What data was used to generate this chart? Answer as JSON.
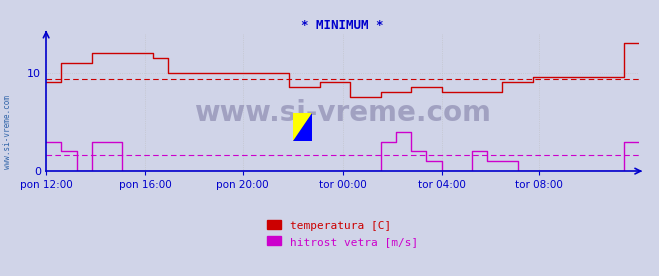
{
  "title": "* MINIMUM *",
  "title_color": "#0000cc",
  "bg_color": "#d0d4e8",
  "plot_bg_color": "#d0d4e8",
  "axis_color": "#0000cc",
  "grid_color": "#bbbbbb",
  "watermark_text": "www.si-vreme.com",
  "watermark_color": "#9999bb",
  "side_label": "www.si-vreme.com",
  "side_label_color": "#3366aa",
  "xlabels": [
    "pon 12:00",
    "pon 16:00",
    "pon 20:00",
    "tor 00:00",
    "tor 04:00",
    "tor 08:00"
  ],
  "xtick_fracs": [
    0.0,
    0.1667,
    0.3333,
    0.5,
    0.6667,
    0.8333
  ],
  "total_points": 576,
  "ylim": [
    0,
    14
  ],
  "yticks": [
    0,
    10
  ],
  "temp_color": "#cc0000",
  "wind_color": "#cc00cc",
  "temp_avg": 9.3,
  "wind_avg": 1.6,
  "legend_labels": [
    "temperatura [C]",
    "hitrost vetra [m/s]"
  ],
  "legend_colors": [
    "#cc0000",
    "#cc00cc"
  ],
  "temp_data": [
    9,
    9,
    9,
    9,
    9,
    9,
    9,
    9,
    9,
    9,
    9,
    9,
    11,
    11,
    11,
    11,
    11,
    11,
    11,
    11,
    11,
    11,
    11,
    11,
    11,
    11,
    11,
    11,
    11,
    11,
    11,
    11,
    11,
    11,
    11,
    11,
    12,
    12,
    12,
    12,
    12,
    12,
    12,
    12,
    12,
    12,
    12,
    12,
    12,
    12,
    12,
    12,
    12,
    12,
    12,
    12,
    12,
    12,
    12,
    12,
    12,
    12,
    12,
    12,
    12,
    12,
    12,
    12,
    12,
    12,
    12,
    12,
    12,
    12,
    12,
    12,
    12,
    12,
    12,
    12,
    12,
    12,
    12,
    12,
    11.5,
    11.5,
    11.5,
    11.5,
    11.5,
    11.5,
    11.5,
    11.5,
    11.5,
    11.5,
    11.5,
    11.5,
    10,
    10,
    10,
    10,
    10,
    10,
    10,
    10,
    10,
    10,
    10,
    10,
    10,
    10,
    10,
    10,
    10,
    10,
    10,
    10,
    10,
    10,
    10,
    10,
    10,
    10,
    10,
    10,
    10,
    10,
    10,
    10,
    10,
    10,
    10,
    10,
    10,
    10,
    10,
    10,
    10,
    10,
    10,
    10,
    10,
    10,
    10,
    10,
    10,
    10,
    10,
    10,
    10,
    10,
    10,
    10,
    10,
    10,
    10,
    10,
    10,
    10,
    10,
    10,
    10,
    10,
    10,
    10,
    10,
    10,
    10,
    10,
    10,
    10,
    10,
    10,
    10,
    10,
    10,
    10,
    10,
    10,
    10,
    10,
    10,
    10,
    10,
    10,
    10,
    10,
    10,
    10,
    10,
    10,
    10,
    10,
    8.5,
    8.5,
    8.5,
    8.5,
    8.5,
    8.5,
    8.5,
    8.5,
    8.5,
    8.5,
    8.5,
    8.5,
    8.5,
    8.5,
    8.5,
    8.5,
    8.5,
    8.5,
    8.5,
    8.5,
    8.5,
    8.5,
    8.5,
    8.5,
    9,
    9,
    9,
    9,
    9,
    9,
    9,
    9,
    9,
    9,
    9,
    9,
    9,
    9,
    9,
    9,
    9,
    9,
    9,
    9,
    9,
    9,
    9,
    9,
    7.5,
    7.5,
    7.5,
    7.5,
    7.5,
    7.5,
    7.5,
    7.5,
    7.5,
    7.5,
    7.5,
    7.5,
    7.5,
    7.5,
    7.5,
    7.5,
    7.5,
    7.5,
    7.5,
    7.5,
    7.5,
    7.5,
    7.5,
    7.5,
    8,
    8,
    8,
    8,
    8,
    8,
    8,
    8,
    8,
    8,
    8,
    8,
    8,
    8,
    8,
    8,
    8,
    8,
    8,
    8,
    8,
    8,
    8,
    8,
    8.5,
    8.5,
    8.5,
    8.5,
    8.5,
    8.5,
    8.5,
    8.5,
    8.5,
    8.5,
    8.5,
    8.5,
    8.5,
    8.5,
    8.5,
    8.5,
    8.5,
    8.5,
    8.5,
    8.5,
    8.5,
    8.5,
    8.5,
    8.5,
    8,
    8,
    8,
    8,
    8,
    8,
    8,
    8,
    8,
    8,
    8,
    8,
    8,
    8,
    8,
    8,
    8,
    8,
    8,
    8,
    8,
    8,
    8,
    8,
    8,
    8,
    8,
    8,
    8,
    8,
    8,
    8,
    8,
    8,
    8,
    8,
    8,
    8,
    8,
    8,
    8,
    8,
    8,
    8,
    8,
    8,
    8,
    8,
    9,
    9,
    9,
    9,
    9,
    9,
    9,
    9,
    9,
    9,
    9,
    9,
    9,
    9,
    9,
    9,
    9,
    9,
    9,
    9,
    9,
    9,
    9,
    9,
    9.5,
    9.5,
    9.5,
    9.5,
    9.5,
    9.5,
    9.5,
    9.5,
    9.5,
    9.5,
    9.5,
    9.5,
    9.5,
    9.5,
    9.5,
    9.5,
    9.5,
    9.5,
    9.5,
    9.5,
    9.5,
    9.5,
    9.5,
    9.5,
    9.5,
    9.5,
    9.5,
    9.5,
    9.5,
    9.5,
    9.5,
    9.5,
    9.5,
    9.5,
    9.5,
    9.5,
    9.5,
    9.5,
    9.5,
    9.5,
    9.5,
    9.5,
    9.5,
    9.5,
    9.5,
    9.5,
    9.5,
    9.5,
    9.5,
    9.5,
    9.5,
    9.5,
    9.5,
    9.5,
    9.5,
    9.5,
    9.5,
    9.5,
    9.5,
    9.5,
    9.5,
    9.5,
    9.5,
    9.5,
    9.5,
    9.5,
    9.5,
    9.5,
    9.5,
    9.5,
    9.5,
    9.5,
    13,
    13,
    13,
    13,
    13,
    13,
    13,
    13,
    13,
    13,
    13,
    13
  ],
  "wind_data": [
    3,
    3,
    3,
    3,
    3,
    3,
    3,
    3,
    3,
    3,
    3,
    3,
    2,
    2,
    2,
    2,
    2,
    2,
    2,
    2,
    2,
    2,
    2,
    2,
    0,
    0,
    0,
    0,
    0,
    0,
    0,
    0,
    0,
    0,
    0,
    0,
    3,
    3,
    3,
    3,
    3,
    3,
    3,
    3,
    3,
    3,
    3,
    3,
    3,
    3,
    3,
    3,
    3,
    3,
    3,
    3,
    3,
    3,
    3,
    3,
    0,
    0,
    0,
    0,
    0,
    0,
    0,
    0,
    0,
    0,
    0,
    0,
    0,
    0,
    0,
    0,
    0,
    0,
    0,
    0,
    0,
    0,
    0,
    0,
    0,
    0,
    0,
    0,
    0,
    0,
    0,
    0,
    0,
    0,
    0,
    0,
    0,
    0,
    0,
    0,
    0,
    0,
    0,
    0,
    0,
    0,
    0,
    0,
    0,
    0,
    0,
    0,
    0,
    0,
    0,
    0,
    0,
    0,
    0,
    0,
    0,
    0,
    0,
    0,
    0,
    0,
    0,
    0,
    0,
    0,
    0,
    0,
    0,
    0,
    0,
    0,
    0,
    0,
    0,
    0,
    0,
    0,
    0,
    0,
    0,
    0,
    0,
    0,
    0,
    0,
    0,
    0,
    0,
    0,
    0,
    0,
    0,
    0,
    0,
    0,
    0,
    0,
    0,
    0,
    0,
    0,
    0,
    0,
    0,
    0,
    0,
    0,
    0,
    0,
    0,
    0,
    0,
    0,
    0,
    0,
    0,
    0,
    0,
    0,
    0,
    0,
    0,
    0,
    0,
    0,
    0,
    0,
    0,
    0,
    0,
    0,
    0,
    0,
    0,
    0,
    0,
    0,
    0,
    0,
    0,
    0,
    0,
    0,
    0,
    0,
    0,
    0,
    0,
    0,
    0,
    0,
    0,
    0,
    0,
    0,
    0,
    0,
    0,
    0,
    0,
    0,
    0,
    0,
    0,
    0,
    0,
    0,
    0,
    0,
    0,
    0,
    0,
    0,
    0,
    0,
    0,
    0,
    0,
    0,
    0,
    0,
    0,
    0,
    0,
    0,
    0,
    0,
    0,
    0,
    0,
    0,
    0,
    0,
    0,
    0,
    0,
    0,
    0,
    0,
    3,
    3,
    3,
    3,
    3,
    3,
    3,
    3,
    3,
    3,
    3,
    3,
    4,
    4,
    4,
    4,
    4,
    4,
    4,
    4,
    4,
    4,
    4,
    4,
    2,
    2,
    2,
    2,
    2,
    2,
    2,
    2,
    2,
    2,
    2,
    2,
    1,
    1,
    1,
    1,
    1,
    1,
    1,
    1,
    1,
    1,
    1,
    1,
    0,
    0,
    0,
    0,
    0,
    0,
    0,
    0,
    0,
    0,
    0,
    0,
    0,
    0,
    0,
    0,
    0,
    0,
    0,
    0,
    0,
    0,
    0,
    0,
    2,
    2,
    2,
    2,
    2,
    2,
    2,
    2,
    2,
    2,
    2,
    2,
    1,
    1,
    1,
    1,
    1,
    1,
    1,
    1,
    1,
    1,
    1,
    1,
    1,
    1,
    1,
    1,
    1,
    1,
    1,
    1,
    1,
    1,
    1,
    1,
    0,
    0,
    0,
    0,
    0,
    0,
    0,
    0,
    0,
    0,
    0,
    0,
    0,
    0,
    0,
    0,
    0,
    0,
    0,
    0,
    0,
    0,
    0,
    0,
    0,
    0,
    0,
    0,
    0,
    0,
    0,
    0,
    0,
    0,
    0,
    0,
    0,
    0,
    0,
    0,
    0,
    0,
    0,
    0,
    0,
    0,
    0,
    0,
    0,
    0,
    0,
    0,
    0,
    0,
    0,
    0,
    0,
    0,
    0,
    0,
    0,
    0,
    0,
    0,
    0,
    0,
    0,
    0,
    0,
    0,
    0,
    0,
    0,
    0,
    0,
    0,
    0,
    0,
    0,
    0,
    0,
    0,
    0,
    0,
    3,
    3,
    3,
    3,
    3,
    3,
    3,
    3,
    3,
    3,
    3,
    3
  ]
}
